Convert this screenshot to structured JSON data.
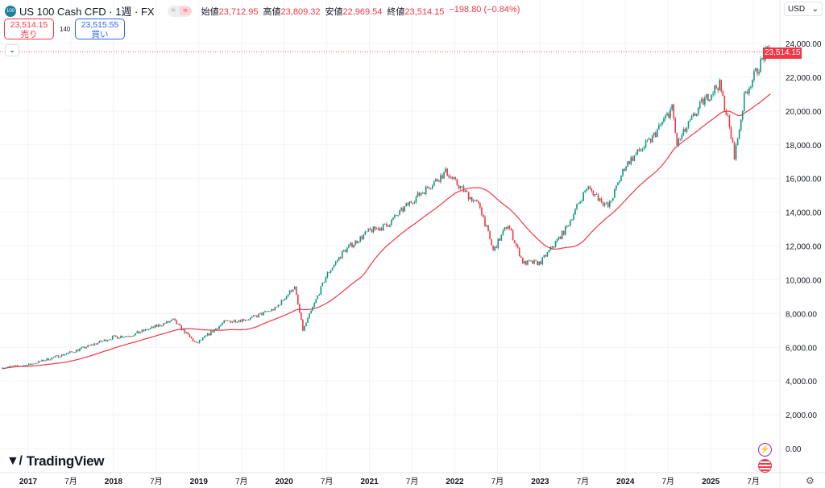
{
  "header": {
    "symbol_badge": "100",
    "title": "US 100 Cash CFD · 1週 · FX",
    "ohlc": [
      {
        "k": "始値",
        "v": "23,712.95"
      },
      {
        "k": "高値",
        "v": "23,809.32"
      },
      {
        "k": "安値",
        "v": "22,969.54"
      },
      {
        "k": "終値",
        "v": "23,514.15"
      },
      {
        "k": "",
        "v": "−198.80 (−0.84%)"
      }
    ],
    "toggle": [
      "=",
      "≈"
    ]
  },
  "trade": {
    "sell_price": "23,514.15",
    "sell_label": "売り",
    "spread": "140",
    "buy_price": "23,515.55",
    "buy_label": "買い",
    "collapse": "⌄"
  },
  "currency": "USD",
  "last_price": "23,514.15",
  "brand": "TradingView",
  "colors": {
    "up": "#089981",
    "down": "#f23645",
    "ma": "#f23645"
  },
  "chart_data": {
    "type": "candlestick",
    "interval": "weekly",
    "series_anchor_closes": [
      [
        2016.7,
        4800
      ],
      [
        2017.0,
        4950
      ],
      [
        2017.5,
        5700
      ],
      [
        2018.0,
        6600
      ],
      [
        2018.2,
        6700
      ],
      [
        2018.7,
        7600
      ],
      [
        2018.97,
        6200
      ],
      [
        2019.3,
        7500
      ],
      [
        2019.6,
        7700
      ],
      [
        2019.9,
        8300
      ],
      [
        2020.12,
        9600
      ],
      [
        2020.22,
        7000
      ],
      [
        2020.5,
        10300
      ],
      [
        2020.7,
        11700
      ],
      [
        2021.0,
        12900
      ],
      [
        2021.2,
        13200
      ],
      [
        2021.5,
        14700
      ],
      [
        2021.9,
        16400
      ],
      [
        2022.0,
        15800
      ],
      [
        2022.3,
        14300
      ],
      [
        2022.45,
        11700
      ],
      [
        2022.62,
        13300
      ],
      [
        2022.8,
        11000
      ],
      [
        2023.0,
        11000
      ],
      [
        2023.3,
        13000
      ],
      [
        2023.55,
        15500
      ],
      [
        2023.8,
        14300
      ],
      [
        2024.0,
        16800
      ],
      [
        2024.3,
        18300
      ],
      [
        2024.55,
        20200
      ],
      [
        2024.6,
        18000
      ],
      [
        2024.9,
        20500
      ],
      [
        2025.1,
        21600
      ],
      [
        2025.2,
        19500
      ],
      [
        2025.28,
        17300
      ],
      [
        2025.4,
        21000
      ],
      [
        2025.55,
        22500
      ],
      [
        2025.65,
        23500
      ],
      [
        2025.7,
        23514
      ]
    ],
    "moving_average": {
      "period_weeks": 40
    },
    "y_ticks": [
      "24,000.00",
      "22,000.00",
      "20,000.00",
      "18,000.00",
      "16,000.00",
      "14,000.00",
      "12,000.00",
      "10,000.00",
      "8,000.00",
      "6,000.00",
      "4,000.00",
      "2,000.00",
      "0.00"
    ],
    "y_tick_values": [
      24000,
      22000,
      20000,
      18000,
      16000,
      14000,
      12000,
      10000,
      8000,
      6000,
      4000,
      2000,
      0
    ],
    "ylim": [
      0,
      24000
    ],
    "x_ticks": [
      "2017",
      "7月",
      "2018",
      "7月",
      "2019",
      "7月",
      "2020",
      "7月",
      "2021",
      "7月",
      "2022",
      "7月",
      "2023",
      "7月",
      "2024",
      "7月",
      "2025",
      "7月"
    ],
    "x_tick_values": [
      2017,
      2017.5,
      2018,
      2018.5,
      2019,
      2019.5,
      2020,
      2020.5,
      2021,
      2021.5,
      2022,
      2022.5,
      2023,
      2023.5,
      2024,
      2024.5,
      2025,
      2025.5
    ],
    "xlim": [
      2016.67,
      2025.85
    ],
    "last_price_line": 23514.15,
    "grid": true
  }
}
